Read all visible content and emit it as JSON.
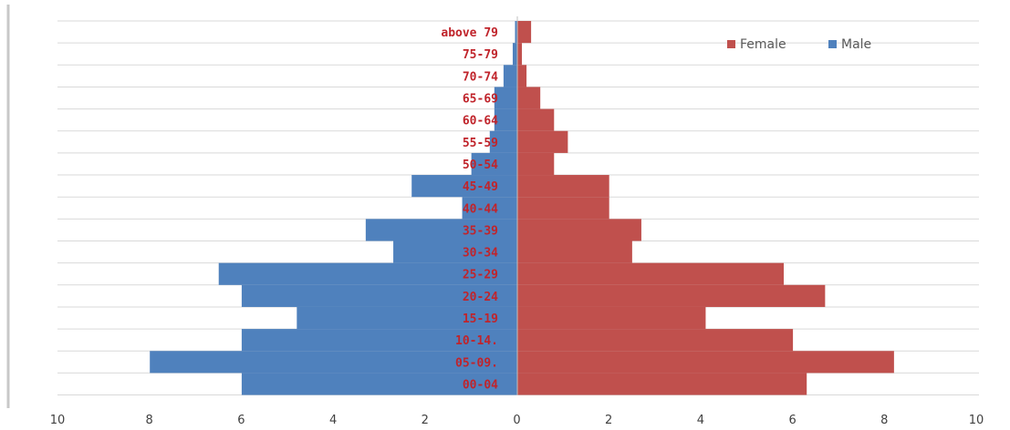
{
  "chart_data": {
    "type": "bar",
    "orientation": "horizontal",
    "subtype": "population-pyramid",
    "categories": [
      "00-04",
      "05-09.",
      "10-14.",
      "15-19",
      "20-24",
      "25-29",
      "30-34",
      "35-39",
      "40-44",
      "45-49",
      "50-54",
      "55-59",
      "60-64",
      "65-69",
      "70-74",
      "75-79",
      "above 79"
    ],
    "series": [
      {
        "name": "Female",
        "values": [
          6.3,
          8.2,
          6.0,
          4.1,
          6.7,
          5.8,
          2.5,
          2.7,
          2.0,
          2.0,
          0.8,
          1.1,
          0.8,
          0.5,
          0.2,
          0.1,
          0.3
        ]
      },
      {
        "name": "Male",
        "values": [
          6.0,
          8.0,
          6.0,
          4.8,
          6.0,
          6.5,
          2.7,
          3.3,
          1.2,
          2.3,
          1.0,
          0.6,
          0.5,
          0.5,
          0.3,
          0.1,
          0.05
        ]
      }
    ],
    "x_ticks": [
      "10",
      "8",
      "6",
      "4",
      "2",
      "0",
      "2",
      "4",
      "6",
      "8",
      "10"
    ],
    "xlim": [
      -10,
      10
    ],
    "title": "",
    "xlabel": "",
    "ylabel": "",
    "grid": true,
    "legend_position": "top-right",
    "colors": {
      "Female": "#c0504d",
      "Male": "#4f81bd",
      "category_label": "#c0242b",
      "grid": "#d9d9d9",
      "tick_text": "#404040"
    }
  }
}
